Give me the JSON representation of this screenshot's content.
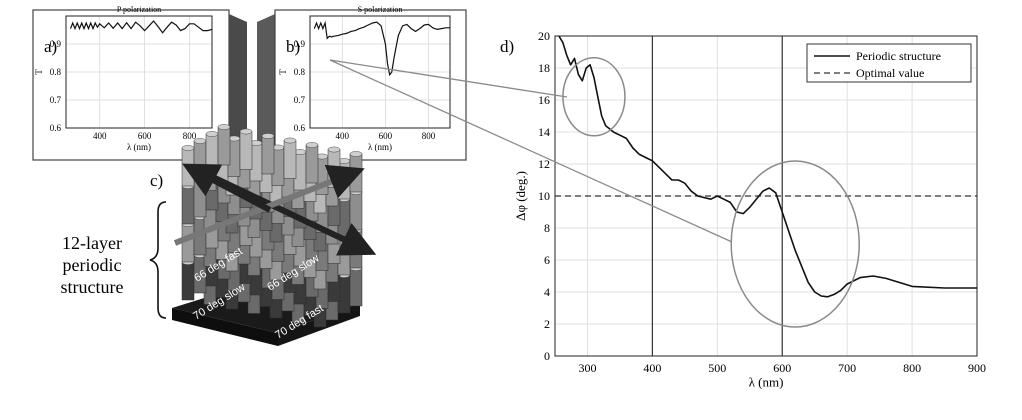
{
  "colors": {
    "series": "#111111",
    "optimal": "#333333",
    "highlight_ellipse": "#8a8a8a",
    "connector": "#8a8a8a",
    "grid": "#d8d8d8"
  },
  "panels": {
    "a": {
      "letter": "a)",
      "title": "P polarization"
    },
    "b": {
      "letter": "b)",
      "title": "S polarization"
    },
    "c": {
      "letter": "c)"
    },
    "d": {
      "letter": "d)"
    }
  },
  "structure_label": {
    "lines": [
      "12-layer",
      "periodic",
      "structure"
    ]
  },
  "layer_labels": [
    "66 deg fast",
    "66 deg slow",
    "70 deg slow",
    "70 deg fast"
  ],
  "chart_data": [
    {
      "id": "a",
      "type": "line",
      "title": "P polarization",
      "xlabel": "λ (nm)",
      "ylabel": "T",
      "xlim": [
        250,
        900
      ],
      "ylim": [
        0.6,
        1.0
      ],
      "xticks": [
        400,
        600,
        800
      ],
      "yticks": [
        0.6,
        0.7,
        0.8,
        0.9
      ],
      "ytick_labels": [
        "0.6",
        "0.7",
        "0.8",
        "0.9"
      ],
      "grid": true,
      "series": [
        {
          "x": [
            270,
            280,
            290,
            300,
            310,
            320,
            330,
            340,
            350,
            360,
            370,
            380,
            390,
            400,
            420,
            440,
            460,
            480,
            500,
            520,
            540,
            560,
            580,
            600,
            620,
            640,
            660,
            680,
            700,
            720,
            740,
            760,
            780,
            800,
            820,
            840,
            860,
            880,
            900
          ],
          "y": [
            0.955,
            0.975,
            0.955,
            0.975,
            0.955,
            0.975,
            0.955,
            0.975,
            0.955,
            0.975,
            0.955,
            0.975,
            0.96,
            0.972,
            0.958,
            0.975,
            0.956,
            0.975,
            0.955,
            0.976,
            0.955,
            0.978,
            0.965,
            0.948,
            0.965,
            0.982,
            0.962,
            0.94,
            0.96,
            0.978,
            0.968,
            0.948,
            0.955,
            0.972,
            0.972,
            0.96,
            0.948,
            0.948,
            0.952
          ]
        }
      ]
    },
    {
      "id": "b",
      "type": "line",
      "title": "S polarization",
      "xlabel": "λ (nm)",
      "ylabel": "T",
      "xlim": [
        250,
        900
      ],
      "ylim": [
        0.6,
        1.0
      ],
      "xticks": [
        400,
        600,
        800
      ],
      "yticks": [
        0.6,
        0.7,
        0.8,
        0.9
      ],
      "ytick_labels": [
        "0.6",
        "0.7",
        "0.8",
        "0.9"
      ],
      "grid": true,
      "series": [
        {
          "x": [
            270,
            280,
            290,
            300,
            310,
            320,
            330,
            340,
            350,
            360,
            380,
            400,
            420,
            440,
            460,
            480,
            500,
            520,
            540,
            560,
            580,
            600,
            610,
            620,
            630,
            640,
            660,
            680,
            700,
            720,
            740,
            760,
            780,
            800,
            820,
            840,
            860,
            880,
            900
          ],
          "y": [
            0.955,
            0.975,
            0.955,
            0.975,
            0.955,
            0.975,
            0.92,
            0.928,
            0.925,
            0.928,
            0.93,
            0.935,
            0.938,
            0.945,
            0.948,
            0.955,
            0.96,
            0.968,
            0.975,
            0.978,
            0.965,
            0.9,
            0.83,
            0.79,
            0.8,
            0.85,
            0.93,
            0.965,
            0.97,
            0.955,
            0.945,
            0.955,
            0.968,
            0.97,
            0.958,
            0.952,
            0.955,
            0.958,
            0.958
          ]
        }
      ]
    },
    {
      "id": "d",
      "type": "line",
      "title": "",
      "xlabel": "λ (nm)",
      "ylabel": "Δφ (deg.)",
      "xlim": [
        250,
        900
      ],
      "ylim": [
        0,
        20
      ],
      "xticks": [
        300,
        400,
        500,
        600,
        700,
        800,
        900
      ],
      "yticks": [
        0,
        2,
        4,
        6,
        8,
        10,
        12,
        14,
        16,
        18,
        20
      ],
      "grid": true,
      "legend": {
        "position": "top-right",
        "entries": [
          "Periodic structure",
          "Optimal value"
        ]
      },
      "series": [
        {
          "name": "Periodic structure",
          "x": [
            256,
            262,
            268,
            274,
            280,
            286,
            292,
            298,
            304,
            310,
            316,
            322,
            328,
            334,
            340,
            350,
            360,
            370,
            380,
            390,
            400,
            410,
            420,
            430,
            440,
            450,
            460,
            470,
            480,
            490,
            500,
            510,
            520,
            530,
            540,
            550,
            560,
            570,
            580,
            590,
            600,
            610,
            620,
            630,
            640,
            650,
            660,
            670,
            680,
            690,
            700,
            720,
            740,
            760,
            780,
            800,
            850,
            900
          ],
          "y": [
            20,
            19.6,
            18.8,
            18.2,
            18.6,
            17.6,
            17.2,
            18.0,
            18.2,
            17.4,
            16.2,
            15.0,
            14.4,
            14.2,
            14.0,
            13.8,
            13.6,
            13.0,
            12.6,
            12.4,
            12.2,
            11.8,
            11.4,
            11.0,
            11.0,
            10.8,
            10.3,
            10.0,
            9.9,
            9.8,
            10.0,
            9.8,
            9.6,
            9.0,
            8.9,
            9.3,
            9.8,
            10.3,
            10.5,
            10.2,
            9.0,
            7.8,
            6.6,
            5.6,
            4.6,
            4.0,
            3.75,
            3.7,
            3.85,
            4.1,
            4.5,
            4.9,
            5.0,
            4.85,
            4.6,
            4.35,
            4.25,
            4.25
          ]
        },
        {
          "name": "Optimal value",
          "x": [
            250,
            900
          ],
          "y": [
            10,
            10
          ]
        }
      ],
      "annotations": [
        {
          "type": "ellipse",
          "center": [
            310,
            16.2
          ]
        },
        {
          "type": "ellipse",
          "center": [
            620,
            7.0
          ]
        }
      ]
    }
  ]
}
